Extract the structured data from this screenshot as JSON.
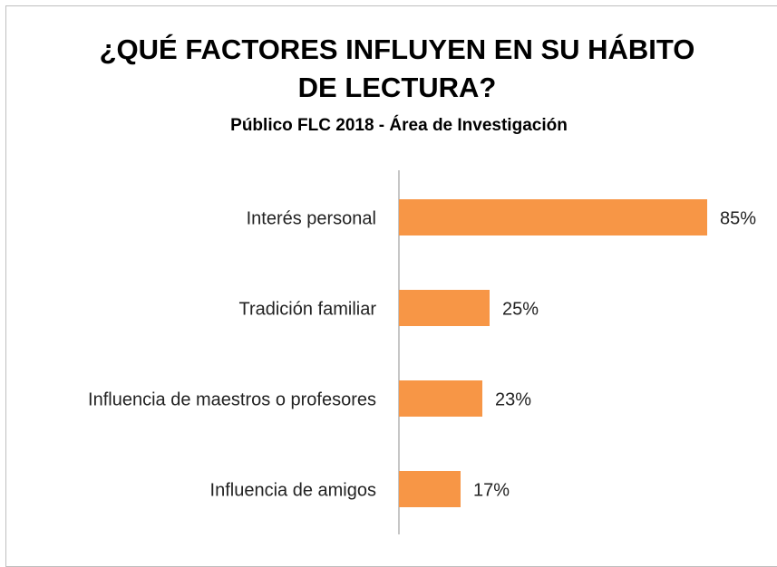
{
  "chart_data": {
    "type": "bar",
    "orientation": "horizontal",
    "title": "¿QUÉ FACTORES INFLUYEN EN SU HÁBITO DE LECTURA?",
    "subtitle": "Público FLC 2018 - Área de Investigación",
    "categories": [
      "Interés personal",
      "Tradición familiar",
      "Influencia de maestros o profesores",
      "Influencia de amigos"
    ],
    "values": [
      85,
      25,
      23,
      17
    ],
    "value_labels": [
      "85%",
      "25%",
      "23%",
      "17%"
    ],
    "color": "#f79646",
    "xlim": [
      0,
      100
    ]
  }
}
